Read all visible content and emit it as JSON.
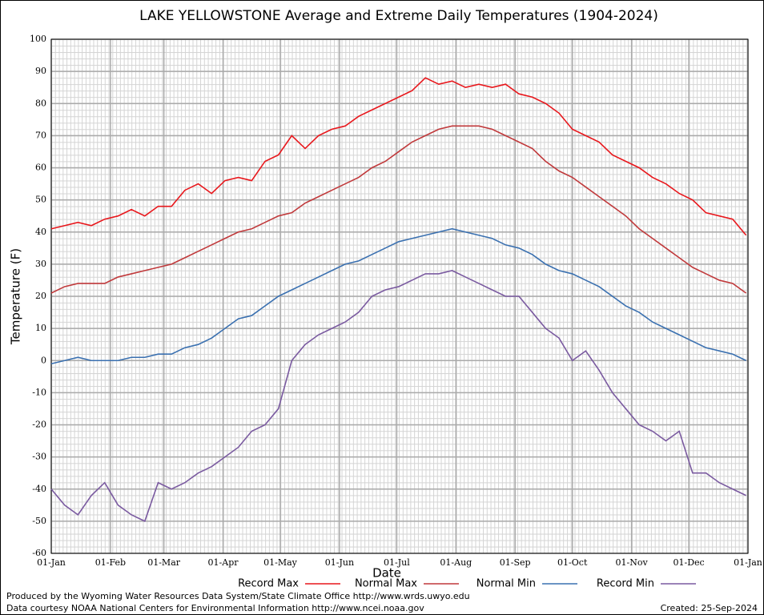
{
  "chart_data": {
    "type": "line",
    "title": "LAKE YELLOWSTONE Average and Extreme Daily Temperatures (1904-2024)",
    "x_label": "Date",
    "y_label": "Temperature (F)",
    "x": [
      0,
      7,
      14,
      21,
      28,
      35,
      42,
      49,
      56,
      63,
      70,
      77,
      84,
      91,
      98,
      105,
      112,
      119,
      126,
      133,
      140,
      147,
      154,
      161,
      168,
      175,
      182,
      189,
      196,
      203,
      210,
      217,
      224,
      231,
      238,
      245,
      252,
      259,
      266,
      273,
      280,
      287,
      294,
      301,
      308,
      315,
      322,
      329,
      336,
      343,
      350,
      357,
      364
    ],
    "xlim": [
      0,
      365
    ],
    "xticks": [
      {
        "value": 0,
        "label": "01-Jan"
      },
      {
        "value": 31,
        "label": "01-Feb"
      },
      {
        "value": 59,
        "label": "01-Mar"
      },
      {
        "value": 90,
        "label": "01-Apr"
      },
      {
        "value": 120,
        "label": "01-May"
      },
      {
        "value": 151,
        "label": "01-Jun"
      },
      {
        "value": 181,
        "label": "01-Jul"
      },
      {
        "value": 212,
        "label": "01-Aug"
      },
      {
        "value": 243,
        "label": "01-Sep"
      },
      {
        "value": 273,
        "label": "01-Oct"
      },
      {
        "value": 304,
        "label": "01-Nov"
      },
      {
        "value": 334,
        "label": "01-Dec"
      },
      {
        "value": 365,
        "label": "01-Jan"
      }
    ],
    "ylim": [
      -60,
      100
    ],
    "yticks": [
      -60,
      -50,
      -40,
      -30,
      -20,
      -10,
      0,
      10,
      20,
      30,
      40,
      50,
      60,
      70,
      80,
      90,
      100
    ],
    "grid": true,
    "legend": "bottom",
    "series": [
      {
        "name": "Record Max",
        "color": "#e8171c",
        "values": [
          41,
          42,
          43,
          42,
          44,
          45,
          47,
          45,
          48,
          48,
          53,
          55,
          52,
          56,
          57,
          56,
          62,
          64,
          70,
          66,
          70,
          72,
          73,
          76,
          78,
          80,
          82,
          84,
          88,
          86,
          87,
          85,
          86,
          85,
          86,
          83,
          82,
          80,
          77,
          72,
          70,
          68,
          64,
          62,
          60,
          57,
          55,
          52,
          50,
          46,
          45,
          44,
          39
        ]
      },
      {
        "name": "Normal Max",
        "color": "#c0393b",
        "values": [
          21,
          23,
          24,
          24,
          24,
          26,
          27,
          28,
          29,
          30,
          32,
          34,
          36,
          38,
          40,
          41,
          43,
          45,
          46,
          49,
          51,
          53,
          55,
          57,
          60,
          62,
          65,
          68,
          70,
          72,
          73,
          73,
          73,
          72,
          70,
          68,
          66,
          62,
          59,
          57,
          54,
          51,
          48,
          45,
          41,
          38,
          35,
          32,
          29,
          27,
          25,
          24,
          21
        ]
      },
      {
        "name": "Normal Min",
        "color": "#3a70b0",
        "values": [
          -1,
          0,
          1,
          0,
          0,
          0,
          1,
          1,
          2,
          2,
          4,
          5,
          7,
          10,
          13,
          14,
          17,
          20,
          22,
          24,
          26,
          28,
          30,
          31,
          33,
          35,
          37,
          38,
          39,
          40,
          41,
          40,
          39,
          38,
          36,
          35,
          33,
          30,
          28,
          27,
          25,
          23,
          20,
          17,
          15,
          12,
          10,
          8,
          6,
          4,
          3,
          2,
          0
        ]
      },
      {
        "name": "Record Min",
        "color": "#7a5aa0",
        "values": [
          -40,
          -45,
          -48,
          -42,
          -38,
          -45,
          -48,
          -50,
          -38,
          -40,
          -38,
          -35,
          -33,
          -30,
          -27,
          -22,
          -20,
          -15,
          0,
          5,
          8,
          10,
          12,
          15,
          20,
          22,
          23,
          25,
          27,
          27,
          28,
          26,
          24,
          22,
          20,
          20,
          15,
          10,
          7,
          0,
          3,
          -3,
          -10,
          -15,
          -20,
          -22,
          -25,
          -22,
          -35,
          -35,
          -38,
          -40,
          -42
        ]
      }
    ],
    "footer_left": [
      "Produced by the Wyoming Water Resources Data System/State Climate Office http://www.wrds.uwyo.edu",
      "Data courtesy NOAA National Centers for Environmental Information http://www.ncei.noaa.gov"
    ],
    "footer_right": "Created:  25-Sep-2024"
  }
}
